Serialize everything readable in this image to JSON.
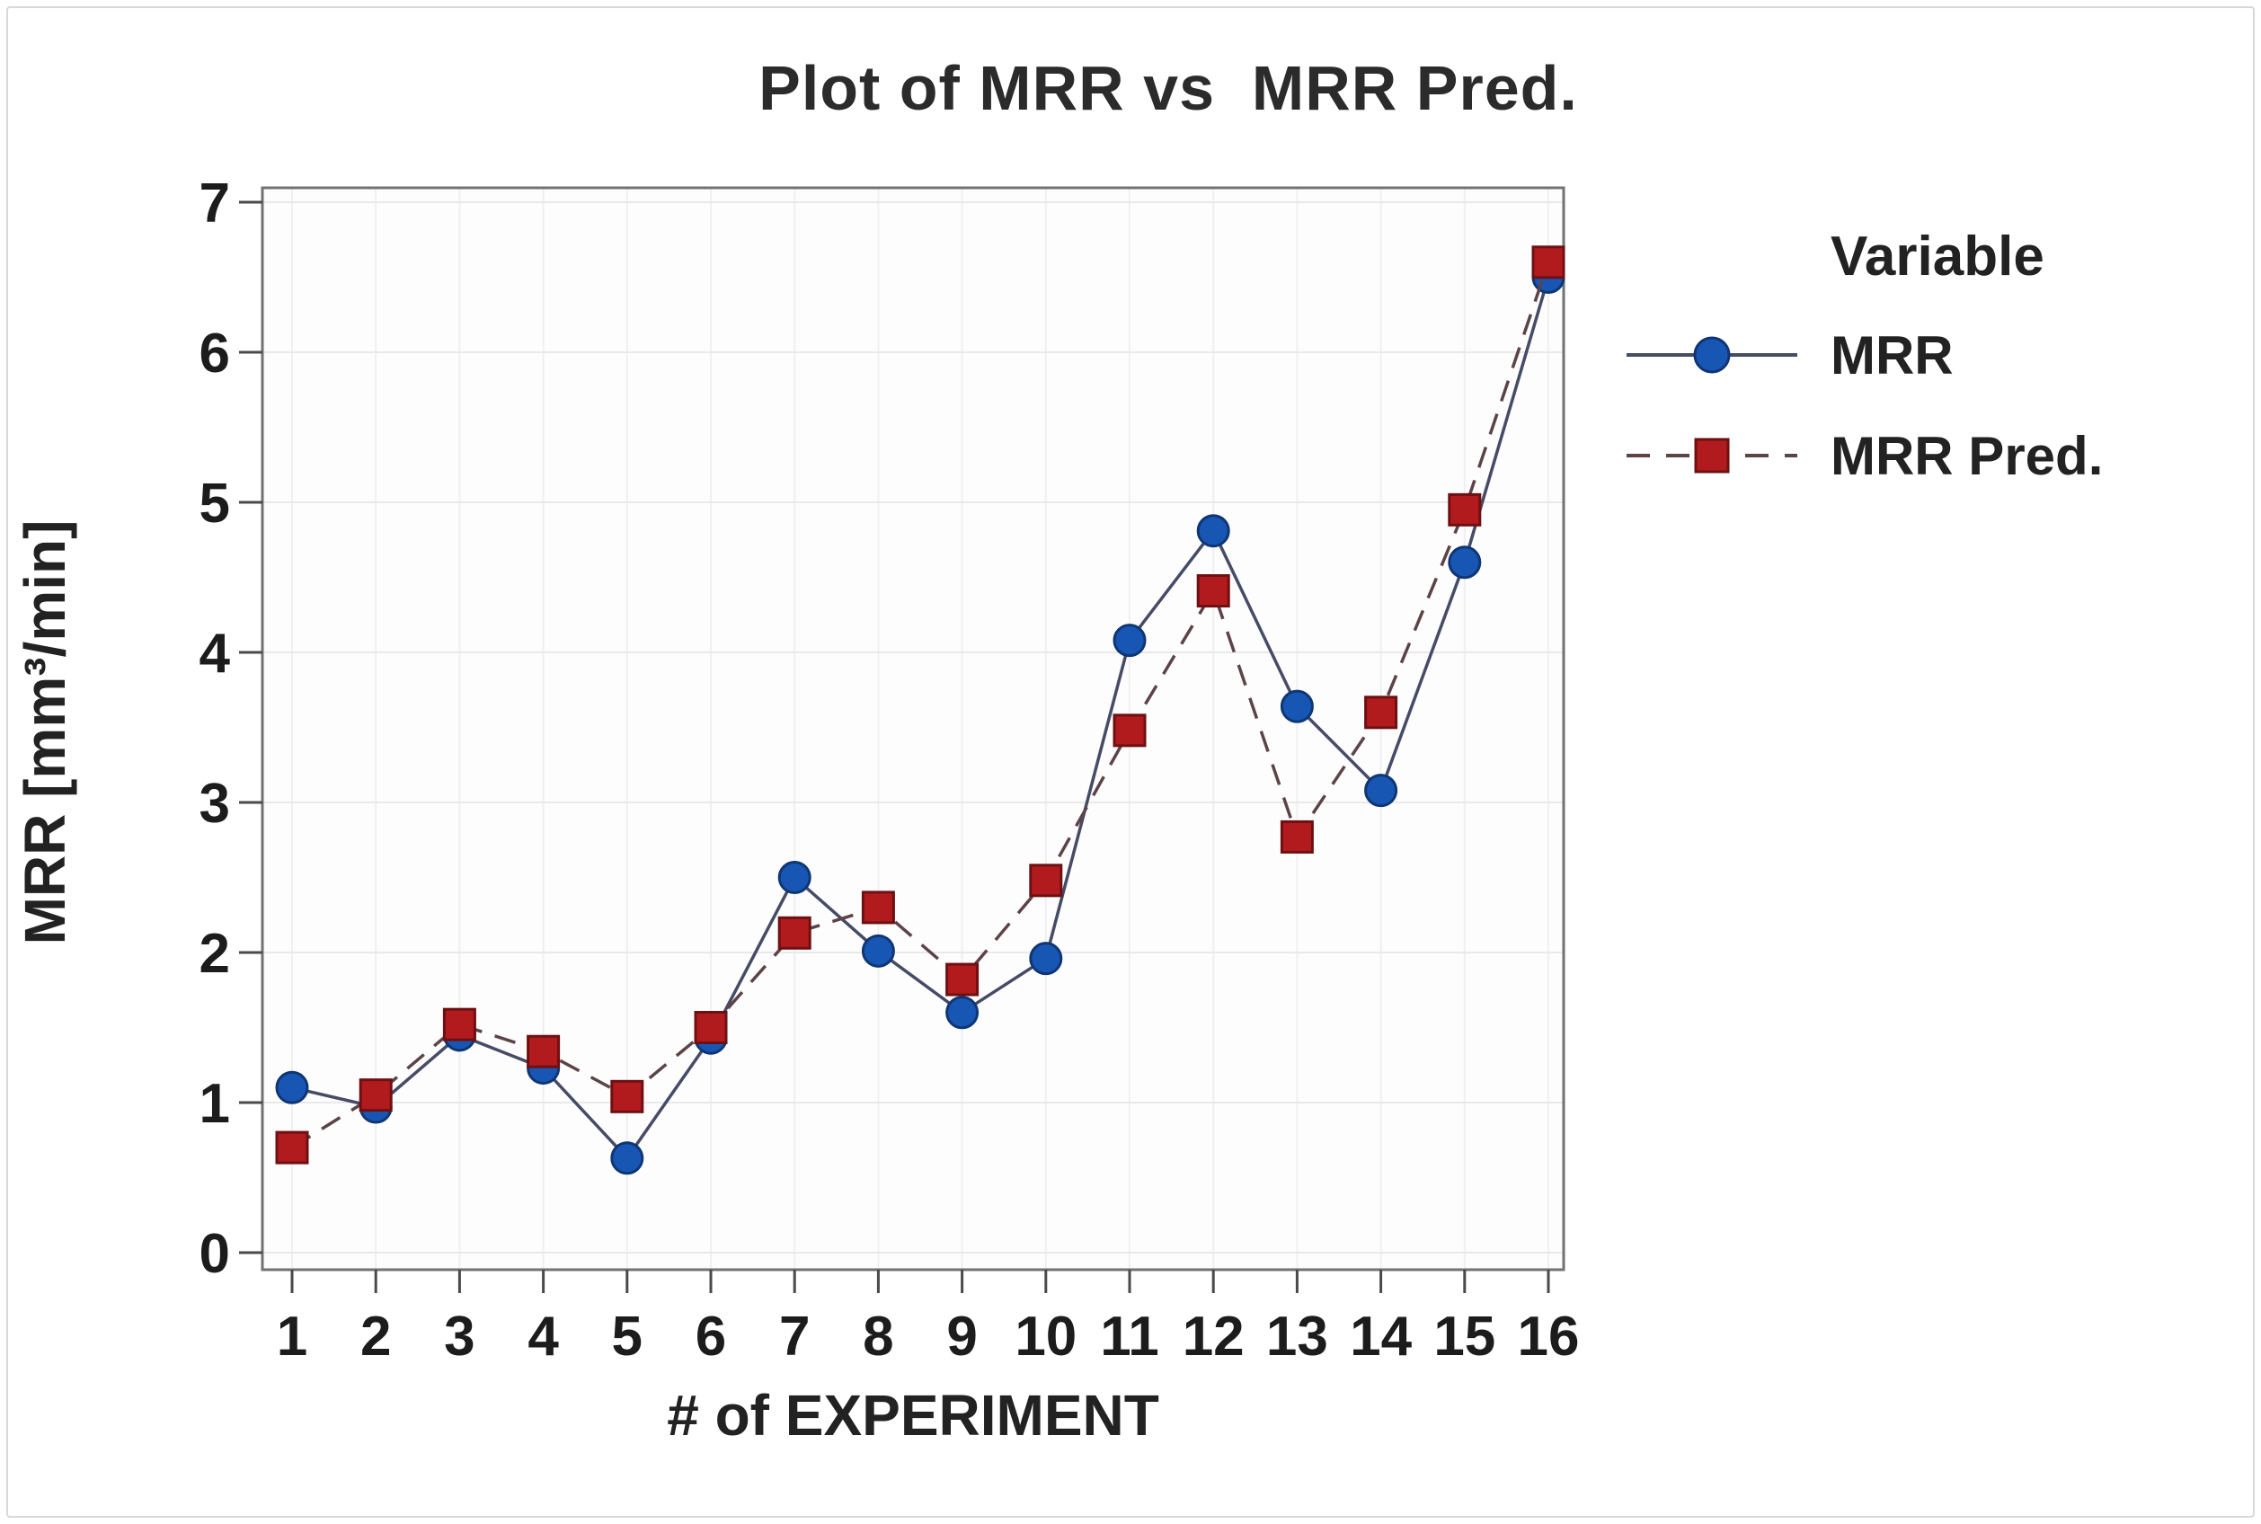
{
  "title": "Plot of MRR vs  MRR Pred.",
  "axes": {
    "x_label": "# of EXPERIMENT",
    "y_label": "MRR [mm³/min]"
  },
  "legend": {
    "header": "Variable",
    "entries": [
      {
        "label": "MRR",
        "series": 0
      },
      {
        "label": "MRR Pred.",
        "series": 1
      }
    ]
  },
  "colors": {
    "plot_bg": "#fdfdfd",
    "frame": "#707274",
    "grid_h": "#e9e9e9",
    "grid_v": "#f0f0f0",
    "tick": "#4a4a4a",
    "text": "#222222",
    "page_border": "#d6d8da"
  },
  "chart_data": {
    "type": "line",
    "title": "Plot of MRR vs  MRR Pred.",
    "xlabel": "# of EXPERIMENT",
    "ylabel": "MRR [mm³/min]",
    "x": [
      1,
      2,
      3,
      4,
      5,
      6,
      7,
      8,
      9,
      10,
      11,
      12,
      13,
      14,
      15,
      16
    ],
    "x_ticks": [
      1,
      2,
      3,
      4,
      5,
      6,
      7,
      8,
      9,
      10,
      11,
      12,
      13,
      14,
      15,
      16
    ],
    "y_ticks": [
      0,
      1,
      2,
      3,
      4,
      5,
      6,
      7
    ],
    "ylim": [
      0,
      7
    ],
    "grid": true,
    "legend_position": "right",
    "series": [
      {
        "name": "MRR",
        "line_style": "solid",
        "marker": "circle",
        "line_color": "#464b66",
        "marker_fill": "#1856b4",
        "marker_edge": "#0f3674",
        "values": [
          1.1,
          0.97,
          1.45,
          1.23,
          0.63,
          1.43,
          2.5,
          2.01,
          1.6,
          1.96,
          4.08,
          4.81,
          3.64,
          3.08,
          4.6,
          6.5
        ]
      },
      {
        "name": "MRR Pred.",
        "line_style": "dashed",
        "marker": "square",
        "line_color": "#5c4347",
        "marker_fill": "#b11b1e",
        "marker_edge": "#6e1012",
        "values": [
          0.7,
          1.05,
          1.52,
          1.34,
          1.04,
          1.5,
          2.13,
          2.3,
          1.82,
          2.48,
          3.48,
          4.41,
          2.77,
          3.6,
          4.95,
          6.6
        ]
      }
    ]
  }
}
